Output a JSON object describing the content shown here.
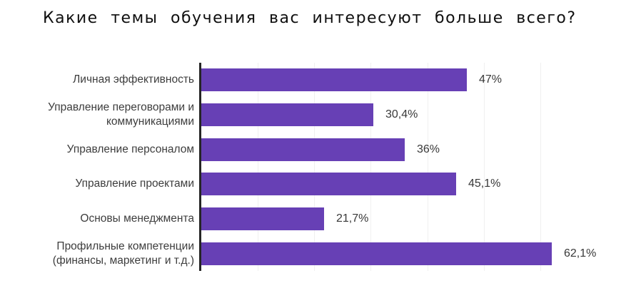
{
  "title": "Какие темы обучения вас интересуют больше всего?",
  "chart_data": {
    "type": "bar",
    "orientation": "horizontal",
    "title": "Какие темы обучения вас интересуют больше всего?",
    "categories": [
      "Личная эффективность",
      "Управление переговорами и коммуникациями",
      "Управление персоналом",
      "Управление проектами",
      "Основы менеджмента",
      "Профильные компетенции (финансы, маркетинг и т.д.)"
    ],
    "category_lines": [
      [
        "Личная эффективность"
      ],
      [
        "Управление переговорами и",
        "коммуникациями"
      ],
      [
        "Управление персоналом"
      ],
      [
        "Управление проектами"
      ],
      [
        "Основы менеджмента"
      ],
      [
        "Профильные компетенции",
        "(финансы, маркетинг и т.д.)"
      ]
    ],
    "values": [
      47,
      30.4,
      36,
      45.1,
      21.7,
      62.1
    ],
    "value_labels": [
      "47%",
      "30,4%",
      "36%",
      "45,1%",
      "21,7%",
      "62,1%"
    ],
    "xlabel": "",
    "ylabel": "",
    "xlim": [
      0,
      70
    ],
    "grid": "vertical gridlines every 10%",
    "gridline_step": 10,
    "legend": "none",
    "bar_color": "#6740b5",
    "axis_color": "#262626",
    "gridline_color": "#f0f0f0"
  }
}
